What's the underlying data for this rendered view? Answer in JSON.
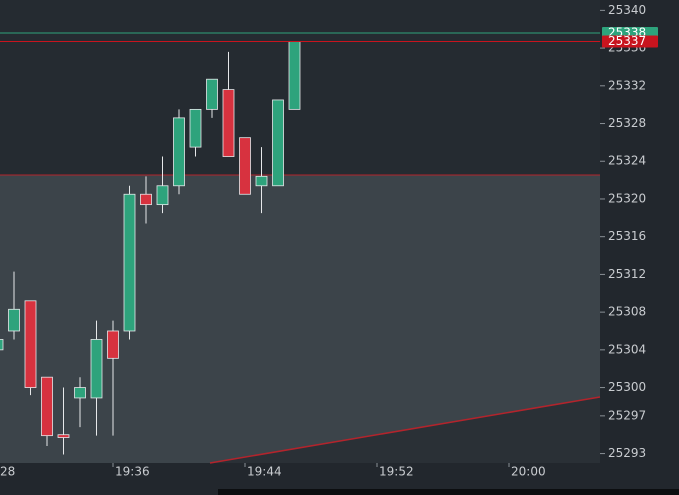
{
  "chart_data": {
    "type": "candlestick",
    "categories": [
      "28",
      null,
      null,
      null,
      null,
      null,
      null,
      null,
      "19:36",
      null,
      null,
      null,
      null,
      null,
      null,
      null,
      "19:44",
      null,
      null,
      null,
      null,
      null,
      null,
      null,
      "19:52",
      null,
      null,
      null,
      null,
      null,
      null,
      null,
      "20:00"
    ],
    "open": [
      null,
      25304.0,
      25306.0,
      25309.2,
      25301.1,
      25295.0,
      25298.9,
      25298.9,
      25306.0,
      25306.0,
      25320.5,
      25319.4,
      25321.4,
      25325.5,
      25329.5,
      25331.6,
      25326.5,
      25321.4,
      25321.4,
      25329.5,
      null,
      null,
      null,
      null,
      null,
      null,
      null,
      null,
      null,
      null,
      null,
      null,
      null
    ],
    "high": [
      null,
      25305.5,
      25312.3,
      25309.2,
      25301.1,
      25300.0,
      25301.1,
      25307.1,
      25307.1,
      25321.4,
      25322.4,
      25324.5,
      25329.5,
      25329.5,
      25332.7,
      25335.6,
      25326.5,
      25325.5,
      25330.5,
      25336.7,
      null,
      null,
      null,
      null,
      null,
      null,
      null,
      null,
      null,
      null,
      null,
      null,
      null
    ],
    "low": [
      null,
      25303.6,
      25305.1,
      25299.2,
      25293.8,
      25292.9,
      25295.8,
      25294.9,
      25294.9,
      25305.1,
      25317.4,
      25318.5,
      25320.5,
      25324.5,
      25328.6,
      25324.5,
      25320.5,
      25318.5,
      25321.4,
      25329.5,
      null,
      null,
      null,
      null,
      null,
      null,
      null,
      null,
      null,
      null,
      null,
      null,
      null
    ],
    "close": [
      null,
      25305.1,
      25308.3,
      25300.0,
      25294.9,
      25294.7,
      25300.0,
      25305.1,
      25303.1,
      25320.5,
      25319.4,
      25321.4,
      25328.6,
      25329.5,
      25332.7,
      25324.5,
      25320.5,
      25322.4,
      25330.5,
      25336.7,
      null,
      null,
      null,
      null,
      null,
      null,
      null,
      null,
      null,
      null,
      null,
      null,
      null
    ],
    "up_color": "#2ea37c",
    "down_color": "#d7323f",
    "ylim": [
      25292,
      25341.1
    ],
    "yticks": [
      25340,
      25336,
      25332,
      25328,
      25324,
      25320,
      25316,
      25312,
      25308,
      25304,
      25300,
      25297,
      25293
    ],
    "price_labels": [
      {
        "value": 25337.6,
        "label": "25338",
        "color": "#2ea37c"
      },
      {
        "value": 25336.7,
        "label": "25337",
        "color": "#c8141e"
      }
    ]
  }
}
